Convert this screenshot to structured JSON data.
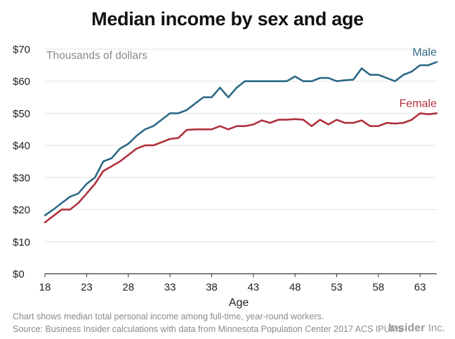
{
  "title": "Median income by sex and age",
  "unit_note": "Thousands of dollars",
  "footnote": "Chart shows median total personal income among full-time, year-round workers.",
  "source": "Source: Business Insider calculations with data from Minnesota Population Center 2017 ACS IPUMS",
  "brand": {
    "bold": "Insider",
    "light": "Inc."
  },
  "chart_data": {
    "type": "line",
    "xlabel": "Age",
    "ylabel": "",
    "xlim": [
      18,
      65
    ],
    "ylim": [
      0,
      70
    ],
    "xticks": [
      18,
      23,
      28,
      33,
      38,
      43,
      48,
      53,
      58,
      63
    ],
    "yticks": [
      0,
      10,
      20,
      30,
      40,
      50,
      60,
      70
    ],
    "ytick_labels": [
      "$0",
      "$10",
      "$20",
      "$30",
      "$40",
      "$50",
      "$60",
      "$70"
    ],
    "grid": "horizontal",
    "x": [
      18,
      19,
      20,
      21,
      22,
      23,
      24,
      25,
      26,
      27,
      28,
      29,
      30,
      31,
      32,
      33,
      34,
      35,
      36,
      37,
      38,
      39,
      40,
      41,
      42,
      43,
      44,
      45,
      46,
      47,
      48,
      49,
      50,
      51,
      52,
      53,
      54,
      55,
      56,
      57,
      58,
      59,
      60,
      61,
      62,
      63,
      64,
      65
    ],
    "series": [
      {
        "name": "Male",
        "color": "#2d6a86",
        "values": [
          18.2,
          20,
          22,
          24,
          25,
          28,
          30,
          35,
          36,
          39,
          40.5,
          43,
          45,
          46,
          48,
          50,
          50,
          51,
          53,
          55,
          55,
          58,
          55,
          58,
          60,
          60,
          60,
          60,
          60,
          60,
          61.5,
          60,
          60,
          61,
          61,
          60,
          60.3,
          60.5,
          64,
          62,
          62,
          61,
          60,
          62,
          63,
          65,
          65,
          66
        ]
      },
      {
        "name": "Female",
        "color": "#b0313d",
        "values": [
          16,
          18,
          20,
          20,
          22,
          25,
          28,
          32,
          33.5,
          35,
          37,
          39,
          40,
          40,
          41,
          42,
          42.3,
          44.8,
          45,
          45,
          45,
          46,
          45,
          46,
          46,
          46.5,
          47.8,
          47,
          48,
          48,
          48.2,
          48,
          46,
          48,
          46.5,
          48,
          47,
          47,
          47.8,
          46,
          46,
          47,
          46.8,
          47,
          48,
          50,
          49.7,
          50
        ]
      }
    ]
  }
}
